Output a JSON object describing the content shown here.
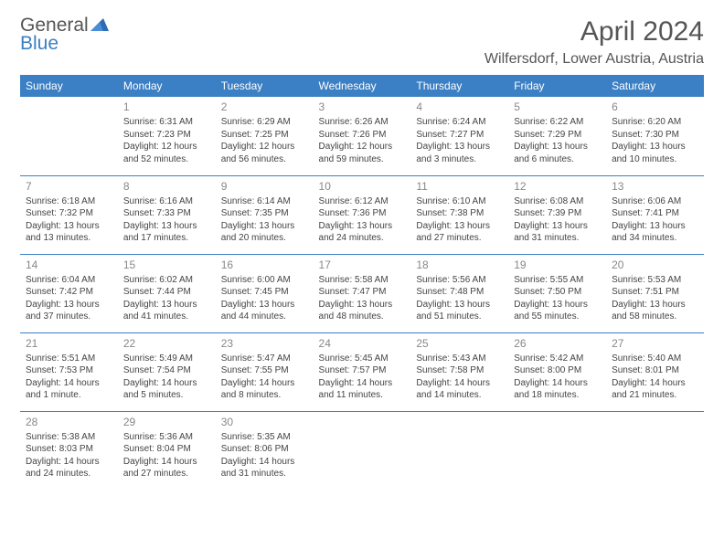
{
  "logo": {
    "line1": "General",
    "line2": "Blue"
  },
  "title": "April 2024",
  "location": "Wilfersdorf, Lower Austria, Austria",
  "colors": {
    "header_bg": "#3b7fc4",
    "rule": "#3b7fc4",
    "text": "#444",
    "daynum": "#888"
  },
  "weekdays": [
    "Sunday",
    "Monday",
    "Tuesday",
    "Wednesday",
    "Thursday",
    "Friday",
    "Saturday"
  ],
  "weeks": [
    [
      null,
      {
        "n": "1",
        "sr": "Sunrise: 6:31 AM",
        "ss": "Sunset: 7:23 PM",
        "d1": "Daylight: 12 hours",
        "d2": "and 52 minutes."
      },
      {
        "n": "2",
        "sr": "Sunrise: 6:29 AM",
        "ss": "Sunset: 7:25 PM",
        "d1": "Daylight: 12 hours",
        "d2": "and 56 minutes."
      },
      {
        "n": "3",
        "sr": "Sunrise: 6:26 AM",
        "ss": "Sunset: 7:26 PM",
        "d1": "Daylight: 12 hours",
        "d2": "and 59 minutes."
      },
      {
        "n": "4",
        "sr": "Sunrise: 6:24 AM",
        "ss": "Sunset: 7:27 PM",
        "d1": "Daylight: 13 hours",
        "d2": "and 3 minutes."
      },
      {
        "n": "5",
        "sr": "Sunrise: 6:22 AM",
        "ss": "Sunset: 7:29 PM",
        "d1": "Daylight: 13 hours",
        "d2": "and 6 minutes."
      },
      {
        "n": "6",
        "sr": "Sunrise: 6:20 AM",
        "ss": "Sunset: 7:30 PM",
        "d1": "Daylight: 13 hours",
        "d2": "and 10 minutes."
      }
    ],
    [
      {
        "n": "7",
        "sr": "Sunrise: 6:18 AM",
        "ss": "Sunset: 7:32 PM",
        "d1": "Daylight: 13 hours",
        "d2": "and 13 minutes."
      },
      {
        "n": "8",
        "sr": "Sunrise: 6:16 AM",
        "ss": "Sunset: 7:33 PM",
        "d1": "Daylight: 13 hours",
        "d2": "and 17 minutes."
      },
      {
        "n": "9",
        "sr": "Sunrise: 6:14 AM",
        "ss": "Sunset: 7:35 PM",
        "d1": "Daylight: 13 hours",
        "d2": "and 20 minutes."
      },
      {
        "n": "10",
        "sr": "Sunrise: 6:12 AM",
        "ss": "Sunset: 7:36 PM",
        "d1": "Daylight: 13 hours",
        "d2": "and 24 minutes."
      },
      {
        "n": "11",
        "sr": "Sunrise: 6:10 AM",
        "ss": "Sunset: 7:38 PM",
        "d1": "Daylight: 13 hours",
        "d2": "and 27 minutes."
      },
      {
        "n": "12",
        "sr": "Sunrise: 6:08 AM",
        "ss": "Sunset: 7:39 PM",
        "d1": "Daylight: 13 hours",
        "d2": "and 31 minutes."
      },
      {
        "n": "13",
        "sr": "Sunrise: 6:06 AM",
        "ss": "Sunset: 7:41 PM",
        "d1": "Daylight: 13 hours",
        "d2": "and 34 minutes."
      }
    ],
    [
      {
        "n": "14",
        "sr": "Sunrise: 6:04 AM",
        "ss": "Sunset: 7:42 PM",
        "d1": "Daylight: 13 hours",
        "d2": "and 37 minutes."
      },
      {
        "n": "15",
        "sr": "Sunrise: 6:02 AM",
        "ss": "Sunset: 7:44 PM",
        "d1": "Daylight: 13 hours",
        "d2": "and 41 minutes."
      },
      {
        "n": "16",
        "sr": "Sunrise: 6:00 AM",
        "ss": "Sunset: 7:45 PM",
        "d1": "Daylight: 13 hours",
        "d2": "and 44 minutes."
      },
      {
        "n": "17",
        "sr": "Sunrise: 5:58 AM",
        "ss": "Sunset: 7:47 PM",
        "d1": "Daylight: 13 hours",
        "d2": "and 48 minutes."
      },
      {
        "n": "18",
        "sr": "Sunrise: 5:56 AM",
        "ss": "Sunset: 7:48 PM",
        "d1": "Daylight: 13 hours",
        "d2": "and 51 minutes."
      },
      {
        "n": "19",
        "sr": "Sunrise: 5:55 AM",
        "ss": "Sunset: 7:50 PM",
        "d1": "Daylight: 13 hours",
        "d2": "and 55 minutes."
      },
      {
        "n": "20",
        "sr": "Sunrise: 5:53 AM",
        "ss": "Sunset: 7:51 PM",
        "d1": "Daylight: 13 hours",
        "d2": "and 58 minutes."
      }
    ],
    [
      {
        "n": "21",
        "sr": "Sunrise: 5:51 AM",
        "ss": "Sunset: 7:53 PM",
        "d1": "Daylight: 14 hours",
        "d2": "and 1 minute."
      },
      {
        "n": "22",
        "sr": "Sunrise: 5:49 AM",
        "ss": "Sunset: 7:54 PM",
        "d1": "Daylight: 14 hours",
        "d2": "and 5 minutes."
      },
      {
        "n": "23",
        "sr": "Sunrise: 5:47 AM",
        "ss": "Sunset: 7:55 PM",
        "d1": "Daylight: 14 hours",
        "d2": "and 8 minutes."
      },
      {
        "n": "24",
        "sr": "Sunrise: 5:45 AM",
        "ss": "Sunset: 7:57 PM",
        "d1": "Daylight: 14 hours",
        "d2": "and 11 minutes."
      },
      {
        "n": "25",
        "sr": "Sunrise: 5:43 AM",
        "ss": "Sunset: 7:58 PM",
        "d1": "Daylight: 14 hours",
        "d2": "and 14 minutes."
      },
      {
        "n": "26",
        "sr": "Sunrise: 5:42 AM",
        "ss": "Sunset: 8:00 PM",
        "d1": "Daylight: 14 hours",
        "d2": "and 18 minutes."
      },
      {
        "n": "27",
        "sr": "Sunrise: 5:40 AM",
        "ss": "Sunset: 8:01 PM",
        "d1": "Daylight: 14 hours",
        "d2": "and 21 minutes."
      }
    ],
    [
      {
        "n": "28",
        "sr": "Sunrise: 5:38 AM",
        "ss": "Sunset: 8:03 PM",
        "d1": "Daylight: 14 hours",
        "d2": "and 24 minutes."
      },
      {
        "n": "29",
        "sr": "Sunrise: 5:36 AM",
        "ss": "Sunset: 8:04 PM",
        "d1": "Daylight: 14 hours",
        "d2": "and 27 minutes."
      },
      {
        "n": "30",
        "sr": "Sunrise: 5:35 AM",
        "ss": "Sunset: 8:06 PM",
        "d1": "Daylight: 14 hours",
        "d2": "and 31 minutes."
      },
      null,
      null,
      null,
      null
    ]
  ]
}
